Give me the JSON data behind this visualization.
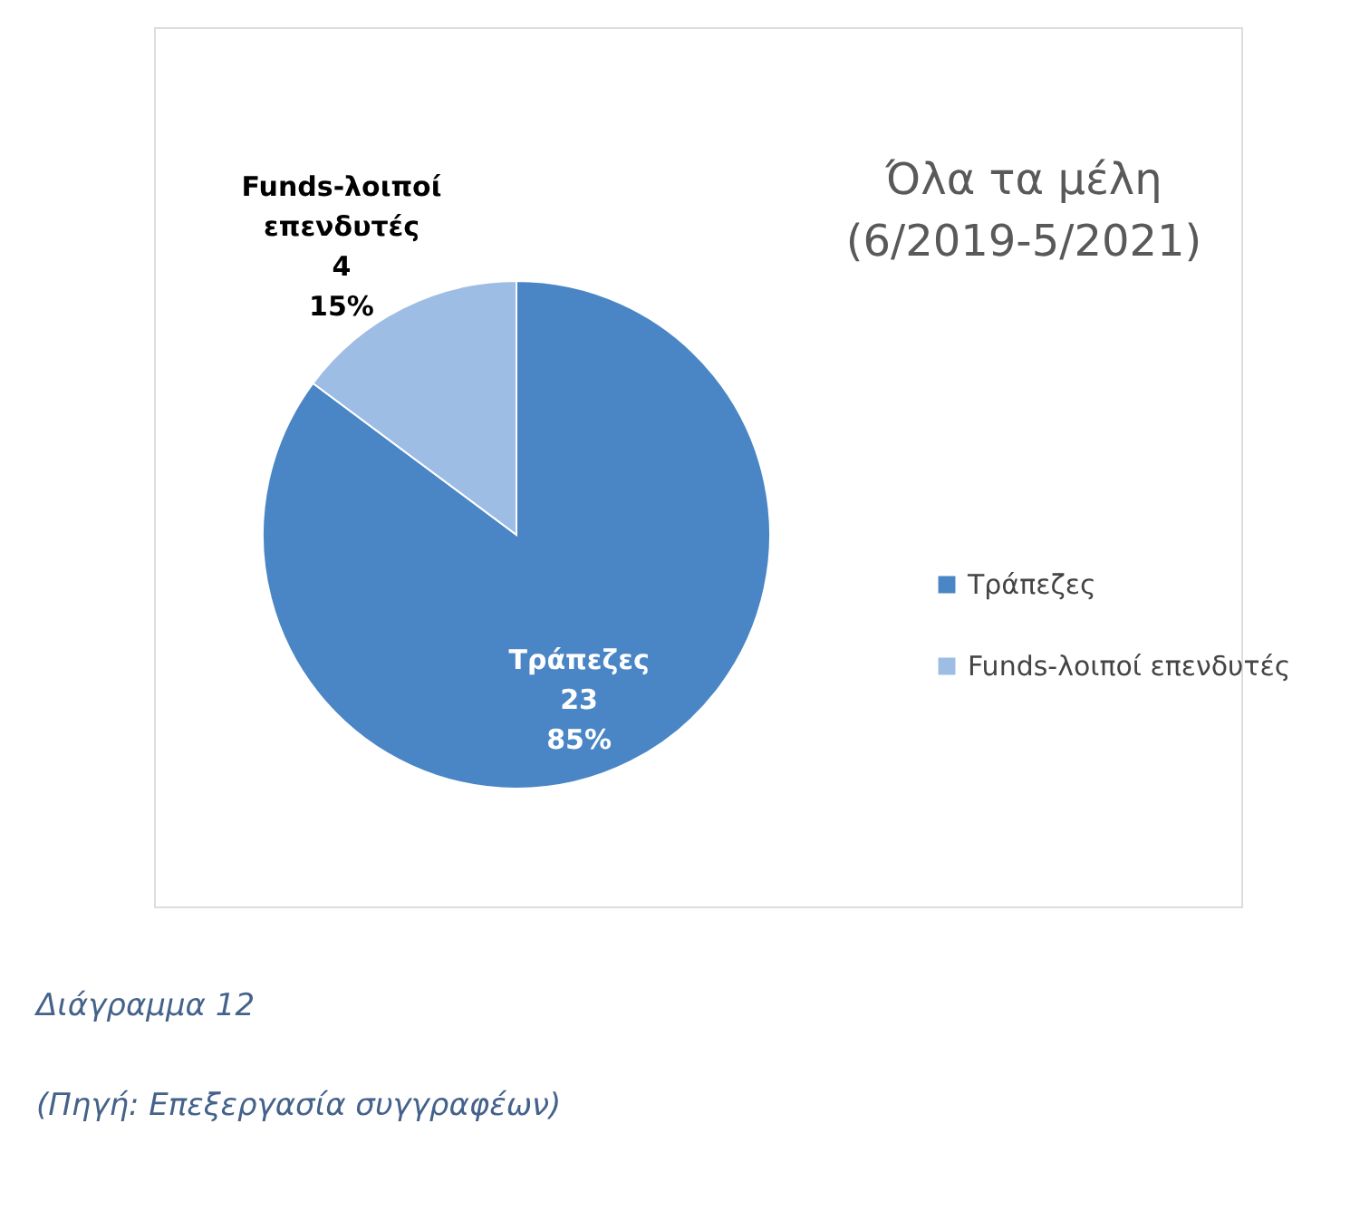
{
  "chart_data": {
    "type": "pie",
    "title": "Όλα τα μέλη\n(6/2019-5/2021)",
    "categories": [
      "Τράπεζες",
      "Funds-λοιποί επενδυτές"
    ],
    "values": [
      23,
      4
    ],
    "colors": [
      "#4a86c5",
      "#9dbde4"
    ],
    "value_labels": [
      "23\n85%",
      "4\n15%"
    ],
    "legend": "right",
    "annotations": [
      "Διάγραμμα 12",
      "(Πηγή: Επεξεργασία συγγραφέων)"
    ]
  }
}
